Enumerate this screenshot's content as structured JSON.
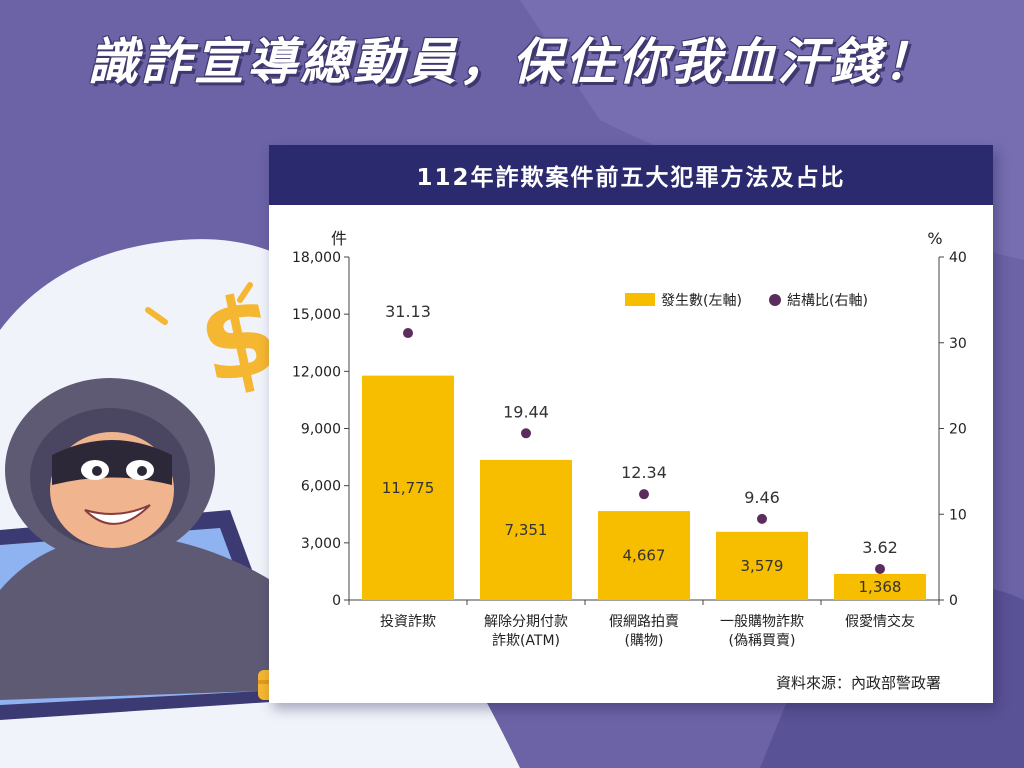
{
  "headline": "識詐宣導總動員，保住你我血汗錢！",
  "panel_title": "112年詐欺案件前五大犯罪方法及占比",
  "source": "資料來源：內政部警政署",
  "colors": {
    "bar": "#f7be00",
    "dot": "#5a2d5e",
    "title_bg": "#2b2a6e",
    "background": "#6b63a6"
  },
  "icons": [
    "dollar-sign-icon",
    "thief-illustration",
    "coin-stack-icon"
  ],
  "chart_data": {
    "type": "bar",
    "categories": [
      [
        "投資詐欺"
      ],
      [
        "解除分期付款",
        "詐欺(ATM)"
      ],
      [
        "假網路拍賣",
        "(購物)"
      ],
      [
        "一般購物詐欺",
        "(偽稱買賣)"
      ],
      [
        "假愛情交友"
      ]
    ],
    "left_axis": {
      "unit": "件",
      "ylim": [
        0,
        18000
      ],
      "ticks": [
        "0",
        "3,000",
        "6,000",
        "9,000",
        "12,000",
        "15,000",
        "18,000"
      ]
    },
    "right_axis": {
      "unit": "%",
      "ylim": [
        0,
        40
      ],
      "ticks": [
        "0",
        "10",
        "20",
        "30",
        "40"
      ]
    },
    "series": [
      {
        "name": "發生數(左軸)",
        "type": "bar",
        "axis": "left",
        "values": [
          11775,
          7351,
          4667,
          3579,
          1368
        ],
        "labels": [
          "11,775",
          "7,351",
          "4,667",
          "3,579",
          "1,368"
        ]
      },
      {
        "name": "結構比(右軸)",
        "type": "scatter",
        "axis": "right",
        "values": [
          31.13,
          19.44,
          12.34,
          9.46,
          3.62
        ],
        "labels": [
          "31.13",
          "19.44",
          "12.34",
          "9.46",
          "3.62"
        ]
      }
    ],
    "legend": "top-right",
    "grid": false
  }
}
